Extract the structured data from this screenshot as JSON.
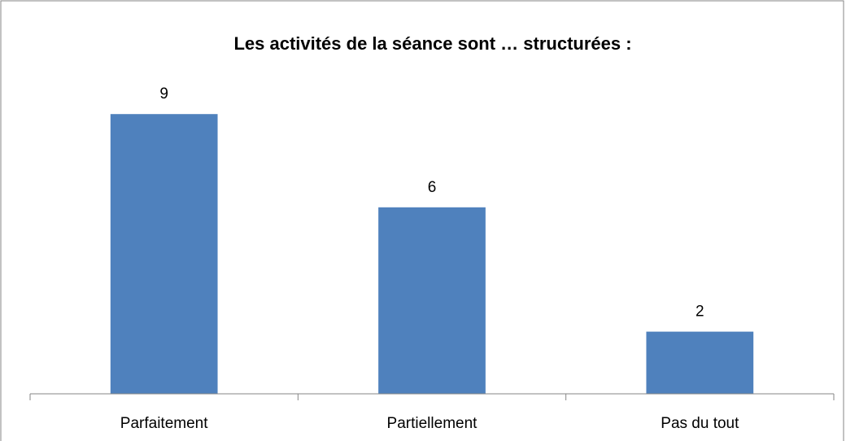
{
  "chart_data": {
    "type": "bar",
    "title": "Les activités de la séance sont … structurées :",
    "categories": [
      "Parfaitement",
      "Partiellement",
      "Pas du tout"
    ],
    "values": [
      9,
      6,
      2
    ],
    "color": "#4f81bd",
    "ylim": [
      0,
      10
    ]
  }
}
